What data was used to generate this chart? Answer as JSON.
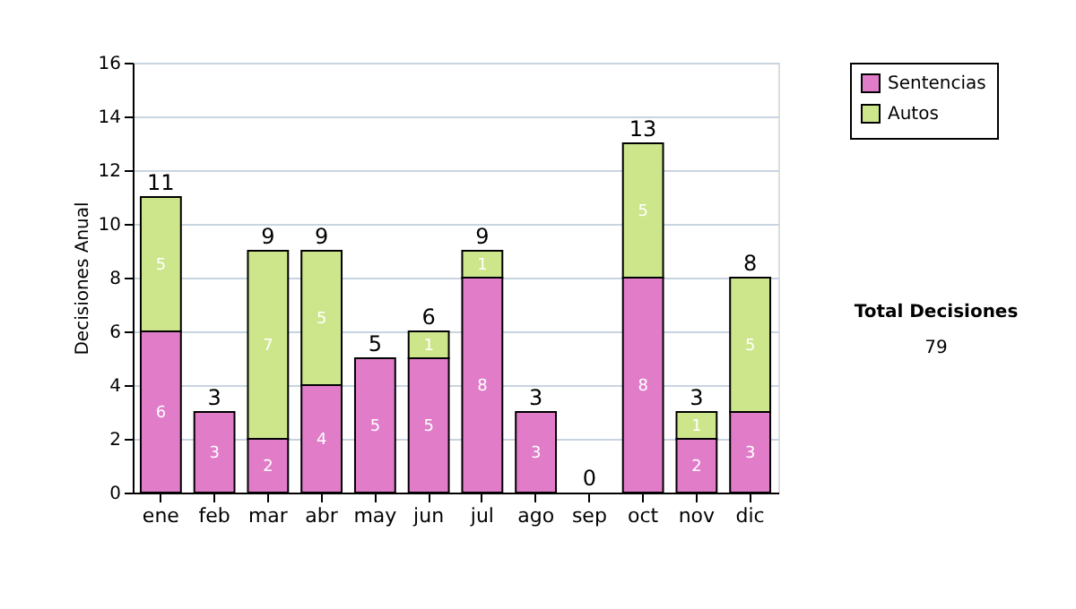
{
  "chart_data": {
    "type": "bar",
    "stacked": true,
    "ylabel": "Decisiones Anual",
    "categories": [
      "ene",
      "feb",
      "mar",
      "abr",
      "may",
      "jun",
      "jul",
      "ago",
      "sep",
      "oct",
      "nov",
      "dic"
    ],
    "series": [
      {
        "name": "Sentencias",
        "color": "#e07cc8",
        "values": [
          6,
          3,
          2,
          4,
          5,
          5,
          8,
          3,
          0,
          8,
          2,
          3
        ],
        "value_labels": [
          "6",
          "3",
          "2",
          "4",
          "5",
          "5",
          "8",
          "3",
          null,
          "8",
          "2",
          "3"
        ]
      },
      {
        "name": "Autos",
        "color": "#cde68c",
        "values": [
          5,
          0,
          7,
          5,
          0,
          1,
          1,
          0,
          0,
          5,
          1,
          5
        ],
        "value_labels": [
          "5",
          null,
          "7",
          "5",
          null,
          "1",
          "1",
          null,
          null,
          "5",
          "1",
          "5"
        ]
      }
    ],
    "totals": [
      "11",
      "3",
      "9",
      "9",
      "5",
      "6",
      "9",
      "3",
      "0",
      "13",
      "3",
      "8"
    ],
    "ylim": [
      0,
      16
    ],
    "yticks": [
      0,
      2,
      4,
      6,
      8,
      10,
      12,
      14,
      16
    ],
    "grid": "y",
    "legend": "right",
    "annotations": [
      "Total Decisiones",
      "79"
    ]
  }
}
